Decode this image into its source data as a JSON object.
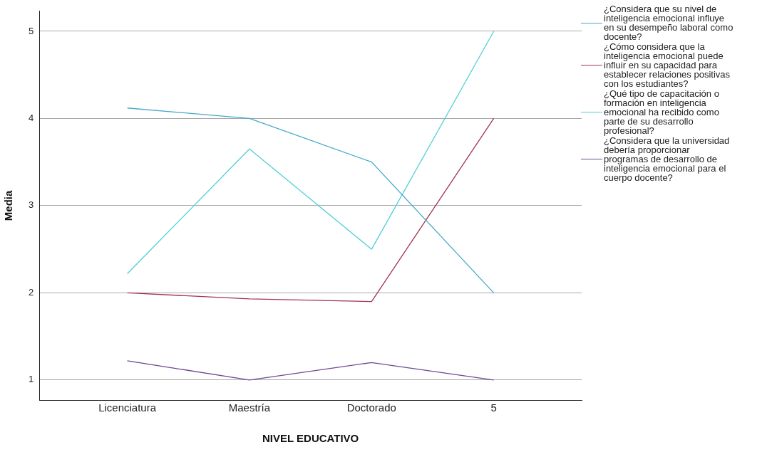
{
  "chart_data": {
    "type": "line",
    "xlabel": "NIVEL EDUCATIVO",
    "ylabel": "Media",
    "categories": [
      "Licenciatura",
      "Maestría",
      "Doctorado",
      "5"
    ],
    "ylim": [
      0.77,
      5.23
    ],
    "yticks": [
      1,
      2,
      3,
      4,
      5
    ],
    "grid": "y",
    "legend": "right",
    "marker": "none",
    "line_style": "solid",
    "series": [
      {
        "name": "¿Considera que su nivel de inteligencia emocional influye en su desempeño laboral como docente?",
        "color": "#45a9c9",
        "values": [
          4.12,
          4.0,
          3.5,
          2.0
        ]
      },
      {
        "name": "¿Cómo considera que la inteligencia emocional puede influir en su capacidad para establecer relaciones positivas con los estudiantes?",
        "color": "#a0344f",
        "values": [
          2.0,
          1.93,
          1.9,
          4.0
        ]
      },
      {
        "name": "¿Qué tipo de capacitación o formación en inteligencia emocional ha recibido como parte de su desarrollo profesional?",
        "color": "#4fcfd6",
        "values": [
          2.22,
          3.65,
          2.5,
          5.0
        ]
      },
      {
        "name": "¿Considera que la universidad debería proporcionar programas de desarrollo de inteligencia emocional para el cuerpo docente?",
        "color": "#6c4a93",
        "values": [
          1.22,
          1.0,
          1.2,
          1.0
        ]
      }
    ]
  }
}
